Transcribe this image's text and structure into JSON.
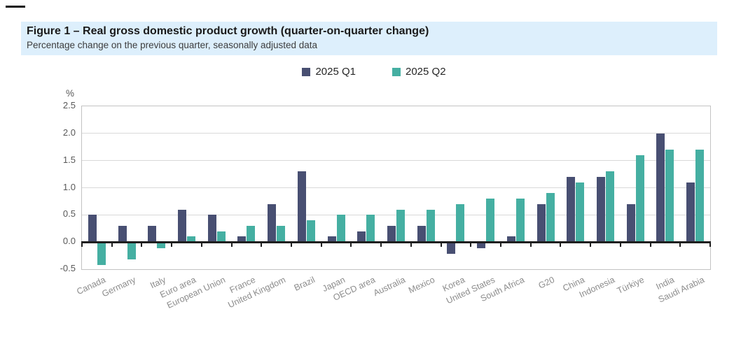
{
  "figure": {
    "title": "Figure 1 – Real gross domestic product growth (quarter-on-quarter change)",
    "subtitle": "Percentage change on the previous quarter, seasonally adjusted data",
    "unit_label": "%"
  },
  "colors": {
    "series_q1": "#484f72",
    "series_q2": "#45afa2",
    "title_background": "#ddeffc",
    "gridline": "#d9d9d9",
    "zero_axis": "#1f1f1f",
    "axis_text": "#595959",
    "category_text": "#8c8c8c"
  },
  "chart_data": {
    "type": "bar",
    "title": "Figure 1 – Real gross domestic product growth (quarter-on-quarter change)",
    "subtitle": "Percentage change on the previous quarter, seasonally adjusted data",
    "ylabel": "%",
    "xlabel": "",
    "ylim": [
      -0.5,
      2.5
    ],
    "y_tick_labels": [
      "2.5",
      "2.0",
      "1.5",
      "1.0",
      "0.5",
      "0.0",
      "-0.5"
    ],
    "grid": true,
    "legend_position": "top-center",
    "categories": [
      "Canada",
      "Germany",
      "Italy",
      "Euro area",
      "European Union",
      "France",
      "United Kingdom",
      "Brazil",
      "Japan",
      "OECD area",
      "Australia",
      "Mexico",
      "Korea",
      "United States",
      "South Africa",
      "G20",
      "China",
      "Indonesia",
      "Türkiye",
      "India",
      "Saudi Arabia"
    ],
    "series": [
      {
        "name": "2025 Q1",
        "color": "#484f72",
        "values": [
          0.5,
          0.3,
          0.3,
          0.6,
          0.5,
          0.1,
          0.7,
          1.3,
          0.1,
          0.2,
          0.3,
          0.3,
          -0.2,
          -0.1,
          0.1,
          0.7,
          1.2,
          1.2,
          0.7,
          2.0,
          1.1
        ]
      },
      {
        "name": "2025 Q2",
        "color": "#45afa2",
        "values": [
          -0.4,
          -0.3,
          -0.1,
          0.1,
          0.2,
          0.3,
          0.3,
          0.4,
          0.5,
          0.5,
          0.6,
          0.6,
          0.7,
          0.8,
          0.8,
          0.9,
          1.1,
          1.3,
          1.6,
          1.7,
          1.7
        ]
      }
    ]
  }
}
